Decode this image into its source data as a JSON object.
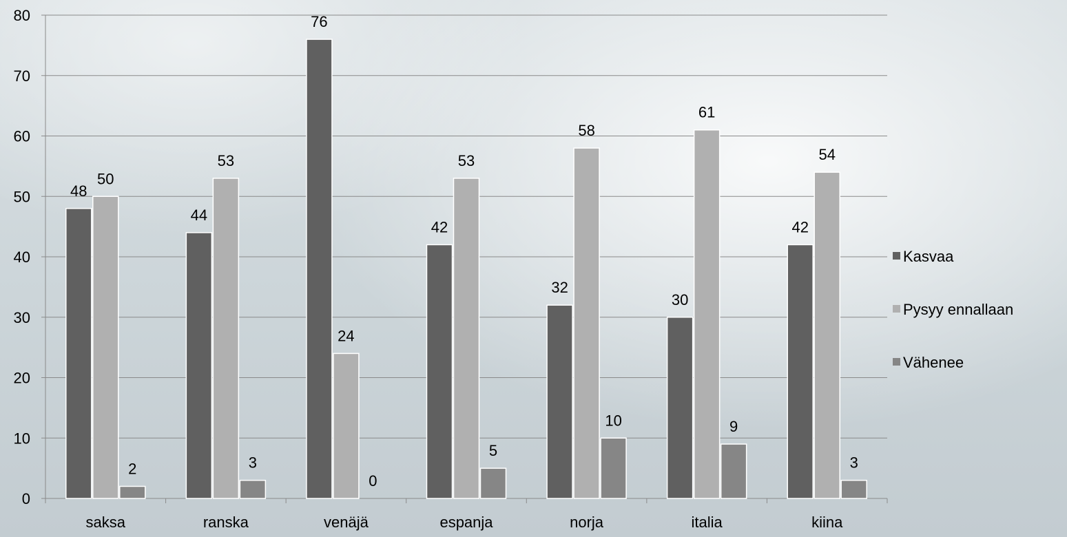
{
  "chart_data": {
    "type": "bar",
    "categories": [
      "saksa",
      "ranska",
      "venäjä",
      "espanja",
      "norja",
      "italia",
      "kiina"
    ],
    "series": [
      {
        "name": "Kasvaa",
        "values": [
          48,
          44,
          76,
          42,
          32,
          30,
          42
        ],
        "color": "#606060"
      },
      {
        "name": "Pysyy ennallaan",
        "values": [
          50,
          53,
          24,
          53,
          58,
          61,
          54
        ],
        "color": "#b0b0b0"
      },
      {
        "name": "Vähenee",
        "values": [
          2,
          3,
          0,
          5,
          10,
          9,
          3
        ],
        "color": "#868686"
      }
    ],
    "ylim": [
      0,
      80
    ],
    "yticks": [
      0,
      10,
      20,
      30,
      40,
      50,
      60,
      70,
      80
    ],
    "grid": true,
    "legend_position": "right",
    "data_labels": true,
    "title": "",
    "xlabel": "",
    "ylabel": ""
  }
}
